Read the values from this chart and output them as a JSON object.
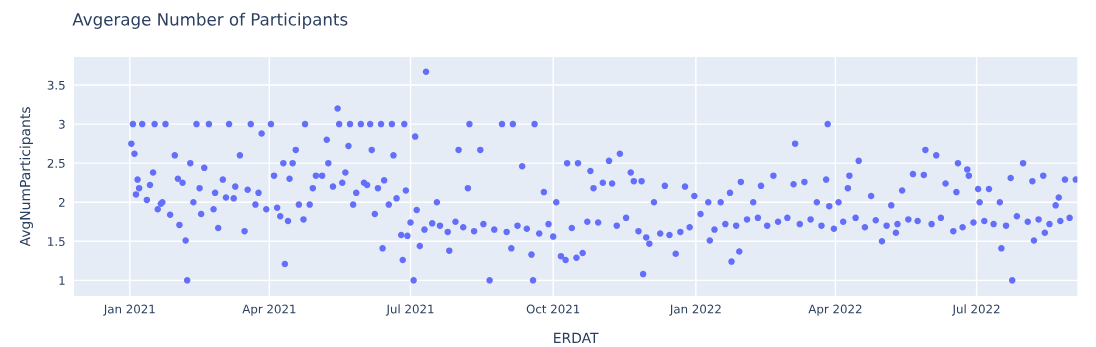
{
  "chart_data": {
    "type": "scatter",
    "title": "Avgerage Number of Participants",
    "xlabel": "ERDAT",
    "ylabel": "AvgNumParticipants",
    "marker": "circle",
    "grid": true,
    "xlim": [
      "2020-11-26",
      "2022-09-04"
    ],
    "ylim": [
      0.8,
      3.86
    ],
    "xticks": [
      {
        "value": "2021-01-01",
        "label": "Jan 2021"
      },
      {
        "value": "2021-04-01",
        "label": "Apr 2021"
      },
      {
        "value": "2021-07-01",
        "label": "Jul 2021"
      },
      {
        "value": "2021-10-01",
        "label": "Oct 2021"
      },
      {
        "value": "2022-01-01",
        "label": "Jan 2022"
      },
      {
        "value": "2022-04-01",
        "label": "Apr 2022"
      },
      {
        "value": "2022-07-01",
        "label": "Jul 2022"
      }
    ],
    "yticks": [
      1,
      1.5,
      2,
      2.5,
      3,
      3.5
    ],
    "series": [
      {
        "color": "#636efa",
        "x": [
          "2021-01-02",
          "2021-01-03",
          "2021-01-04",
          "2021-01-05",
          "2021-01-06",
          "2021-01-07",
          "2021-01-09",
          "2021-01-12",
          "2021-01-14",
          "2021-01-16",
          "2021-01-17",
          "2021-01-19",
          "2021-01-21",
          "2021-01-22",
          "2021-01-24",
          "2021-01-27",
          "2021-01-30",
          "2021-02-01",
          "2021-02-02",
          "2021-02-04",
          "2021-02-06",
          "2021-02-07",
          "2021-02-09",
          "2021-02-11",
          "2021-02-13",
          "2021-02-15",
          "2021-02-16",
          "2021-02-18",
          "2021-02-21",
          "2021-02-24",
          "2021-02-25",
          "2021-02-27",
          "2021-03-02",
          "2021-03-04",
          "2021-03-06",
          "2021-03-09",
          "2021-03-10",
          "2021-03-13",
          "2021-03-16",
          "2021-03-18",
          "2021-03-20",
          "2021-03-23",
          "2021-03-25",
          "2021-03-27",
          "2021-03-30",
          "2021-04-02",
          "2021-04-04",
          "2021-04-06",
          "2021-04-08",
          "2021-04-10",
          "2021-04-11",
          "2021-04-13",
          "2021-04-14",
          "2021-04-16",
          "2021-04-18",
          "2021-04-20",
          "2021-04-23",
          "2021-04-24",
          "2021-04-27",
          "2021-04-29",
          "2021-05-01",
          "2021-05-05",
          "2021-05-08",
          "2021-05-09",
          "2021-05-12",
          "2021-05-15",
          "2021-05-16",
          "2021-05-18",
          "2021-05-20",
          "2021-05-22",
          "2021-05-23",
          "2021-05-25",
          "2021-05-27",
          "2021-05-30",
          "2021-06-01",
          "2021-06-03",
          "2021-06-05",
          "2021-06-06",
          "2021-06-08",
          "2021-06-10",
          "2021-06-12",
          "2021-06-13",
          "2021-06-14",
          "2021-06-17",
          "2021-06-19",
          "2021-06-20",
          "2021-06-22",
          "2021-06-25",
          "2021-06-26",
          "2021-06-27",
          "2021-06-28",
          "2021-06-29",
          "2021-07-01",
          "2021-07-03",
          "2021-07-04",
          "2021-07-05",
          "2021-07-07",
          "2021-07-10",
          "2021-07-11",
          "2021-07-15",
          "2021-07-18",
          "2021-07-20",
          "2021-07-25",
          "2021-07-26",
          "2021-07-30",
          "2021-08-01",
          "2021-08-04",
          "2021-08-07",
          "2021-08-08",
          "2021-08-11",
          "2021-08-15",
          "2021-08-17",
          "2021-08-21",
          "2021-08-24",
          "2021-08-29",
          "2021-09-01",
          "2021-09-04",
          "2021-09-05",
          "2021-09-08",
          "2021-09-11",
          "2021-09-14",
          "2021-09-17",
          "2021-09-18",
          "2021-09-19",
          "2021-09-22",
          "2021-09-25",
          "2021-09-28",
          "2021-10-01",
          "2021-10-03",
          "2021-10-06",
          "2021-10-09",
          "2021-10-10",
          "2021-10-13",
          "2021-10-16",
          "2021-10-17",
          "2021-10-20",
          "2021-10-23",
          "2021-10-25",
          "2021-10-27",
          "2021-10-30",
          "2021-11-02",
          "2021-11-06",
          "2021-11-08",
          "2021-11-11",
          "2021-11-13",
          "2021-11-17",
          "2021-11-20",
          "2021-11-22",
          "2021-11-25",
          "2021-11-27",
          "2021-11-28",
          "2021-11-30",
          "2021-12-02",
          "2021-12-05",
          "2021-12-09",
          "2021-12-12",
          "2021-12-15",
          "2021-12-19",
          "2021-12-22",
          "2021-12-25",
          "2021-12-28",
          "2021-12-31",
          "2022-01-04",
          "2022-01-09",
          "2022-01-10",
          "2022-01-13",
          "2022-01-17",
          "2022-01-20",
          "2022-01-23",
          "2022-01-24",
          "2022-01-27",
          "2022-01-29",
          "2022-01-30",
          "2022-02-03",
          "2022-02-07",
          "2022-02-10",
          "2022-02-12",
          "2022-02-16",
          "2022-02-20",
          "2022-02-23",
          "2022-03-01",
          "2022-03-05",
          "2022-03-06",
          "2022-03-09",
          "2022-03-12",
          "2022-03-16",
          "2022-03-20",
          "2022-03-23",
          "2022-03-26",
          "2022-03-27",
          "2022-03-28",
          "2022-03-31",
          "2022-04-03",
          "2022-04-06",
          "2022-04-09",
          "2022-04-10",
          "2022-04-14",
          "2022-04-16",
          "2022-04-20",
          "2022-04-24",
          "2022-04-27",
          "2022-05-01",
          "2022-05-04",
          "2022-05-07",
          "2022-05-10",
          "2022-05-11",
          "2022-05-14",
          "2022-05-18",
          "2022-05-21",
          "2022-05-24",
          "2022-05-28",
          "2022-05-29",
          "2022-06-02",
          "2022-06-05",
          "2022-06-08",
          "2022-06-11",
          "2022-06-16",
          "2022-06-18",
          "2022-06-19",
          "2022-06-22",
          "2022-06-25",
          "2022-06-26",
          "2022-06-29",
          "2022-07-02",
          "2022-07-03",
          "2022-07-06",
          "2022-07-09",
          "2022-07-12",
          "2022-07-16",
          "2022-07-17",
          "2022-07-20",
          "2022-07-23",
          "2022-07-24",
          "2022-07-27",
          "2022-07-31",
          "2022-08-03",
          "2022-08-06",
          "2022-08-07",
          "2022-08-10",
          "2022-08-13",
          "2022-08-14",
          "2022-08-17",
          "2022-08-21",
          "2022-08-23",
          "2022-08-24",
          "2022-08-27",
          "2022-08-30",
          "2022-09-03"
        ],
        "values": [
          2.75,
          3,
          2.62,
          2.1,
          2.29,
          2.18,
          3,
          2.03,
          2.22,
          2.38,
          3,
          1.91,
          1.98,
          2,
          3,
          1.84,
          2.6,
          2.3,
          1.71,
          2.25,
          1.51,
          1,
          2.5,
          2,
          3,
          2.18,
          1.85,
          2.44,
          3,
          1.91,
          2.12,
          1.67,
          2.29,
          2.06,
          3,
          2.05,
          2.2,
          2.6,
          1.63,
          2.16,
          3,
          1.97,
          2.12,
          2.88,
          1.91,
          3,
          2.34,
          1.93,
          1.82,
          2.5,
          1.21,
          1.76,
          2.3,
          2.5,
          2.67,
          1.97,
          1.78,
          3,
          1.97,
          2.18,
          2.34,
          2.34,
          2.8,
          2.5,
          2.2,
          3.2,
          3,
          2.25,
          2.38,
          2.72,
          3,
          1.97,
          2.12,
          3,
          2.25,
          2.22,
          3,
          2.67,
          1.85,
          2.18,
          3,
          1.41,
          2.28,
          1.97,
          3,
          2.6,
          2.05,
          1.58,
          1.26,
          3,
          2.15,
          1.57,
          1.74,
          1,
          2.84,
          1.9,
          1.44,
          1.65,
          3.67,
          1.73,
          2,
          1.7,
          1.62,
          1.38,
          1.75,
          2.67,
          1.68,
          2.18,
          3,
          1.63,
          2.67,
          1.72,
          1,
          1.65,
          3,
          1.62,
          1.41,
          3,
          1.7,
          2.46,
          1.66,
          1.33,
          1,
          3,
          1.6,
          2.13,
          1.72,
          1.56,
          2,
          1.31,
          1.26,
          2.5,
          1.67,
          1.29,
          2.5,
          1.35,
          1.75,
          2.4,
          2.18,
          1.74,
          2.25,
          2.53,
          2.24,
          1.7,
          2.62,
          1.8,
          2.38,
          2.27,
          1.63,
          2.27,
          1.08,
          1.55,
          1.47,
          2,
          1.6,
          2.21,
          1.58,
          1.34,
          1.62,
          2.2,
          1.68,
          2.08,
          1.85,
          2,
          1.51,
          1.65,
          2,
          1.72,
          2.12,
          1.24,
          1.7,
          1.37,
          2.26,
          1.78,
          2,
          1.8,
          2.21,
          1.7,
          2.34,
          1.75,
          1.8,
          2.23,
          2.75,
          1.72,
          2.26,
          1.78,
          2,
          1.7,
          2.29,
          3,
          1.95,
          1.66,
          2,
          1.75,
          2.18,
          2.34,
          1.8,
          2.53,
          1.68,
          2.08,
          1.77,
          1.5,
          1.7,
          1.96,
          1.61,
          1.72,
          2.15,
          1.78,
          2.36,
          1.76,
          2.35,
          2.67,
          1.72,
          2.6,
          1.8,
          2.24,
          1.63,
          2.13,
          2.5,
          1.68,
          2.42,
          2.34,
          1.74,
          2.17,
          2,
          1.76,
          2.17,
          1.72,
          2,
          1.41,
          1.7,
          2.31,
          1,
          1.82,
          2.5,
          1.75,
          2.27,
          1.51,
          1.78,
          2.34,
          1.61,
          1.72,
          1.96,
          2.06,
          1.76,
          2.29,
          1.8,
          2.29
        ]
      }
    ]
  }
}
